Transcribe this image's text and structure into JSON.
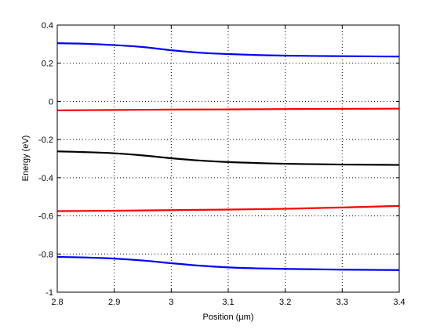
{
  "chart_data": {
    "type": "line",
    "title": "",
    "xlabel": "Position (µm)",
    "ylabel": "Energy (eV)",
    "xlim": [
      2.8,
      3.4
    ],
    "ylim": [
      -1,
      0.4
    ],
    "grid": true,
    "xticks": [
      2.8,
      2.9,
      3.0,
      3.1,
      3.2,
      3.3,
      3.4
    ],
    "xtick_labels": [
      "2.8",
      "2.9",
      "3",
      "3.1",
      "3.2",
      "3.3",
      "3.4"
    ],
    "yticks": [
      -1,
      -0.8,
      -0.6,
      -0.4,
      -0.2,
      0,
      0.2,
      0.4
    ],
    "ytick_labels": [
      "-1",
      "-0.8",
      "-0.6",
      "-0.4",
      "-0.2",
      "0",
      "0.2",
      "0.4"
    ],
    "series": [
      {
        "color": "#0000ff",
        "x": [
          2.8,
          2.85,
          2.9,
          2.95,
          3.0,
          3.05,
          3.1,
          3.15,
          3.2,
          3.25,
          3.3,
          3.35,
          3.4
        ],
        "y": [
          0.305,
          0.302,
          0.295,
          0.285,
          0.268,
          0.255,
          0.248,
          0.243,
          0.24,
          0.238,
          0.237,
          0.236,
          0.235
        ]
      },
      {
        "color": "#ff0000",
        "x": [
          2.8,
          2.9,
          3.0,
          3.1,
          3.2,
          3.3,
          3.4
        ],
        "y": [
          -0.047,
          -0.045,
          -0.043,
          -0.042,
          -0.04,
          -0.039,
          -0.038
        ]
      },
      {
        "color": "#000000",
        "x": [
          2.8,
          2.85,
          2.9,
          2.95,
          3.0,
          3.05,
          3.1,
          3.15,
          3.2,
          3.25,
          3.3,
          3.35,
          3.4
        ],
        "y": [
          -0.262,
          -0.266,
          -0.272,
          -0.283,
          -0.298,
          -0.31,
          -0.318,
          -0.323,
          -0.327,
          -0.329,
          -0.331,
          -0.332,
          -0.333
        ]
      },
      {
        "color": "#ff0000",
        "x": [
          2.8,
          2.9,
          3.0,
          3.1,
          3.2,
          3.3,
          3.4
        ],
        "y": [
          -0.575,
          -0.573,
          -0.57,
          -0.567,
          -0.563,
          -0.556,
          -0.548
        ]
      },
      {
        "color": "#0000ff",
        "x": [
          2.8,
          2.85,
          2.9,
          2.95,
          3.0,
          3.05,
          3.1,
          3.15,
          3.2,
          3.25,
          3.3,
          3.35,
          3.4
        ],
        "y": [
          -0.815,
          -0.818,
          -0.824,
          -0.834,
          -0.848,
          -0.861,
          -0.87,
          -0.875,
          -0.878,
          -0.88,
          -0.882,
          -0.883,
          -0.884
        ]
      }
    ]
  }
}
